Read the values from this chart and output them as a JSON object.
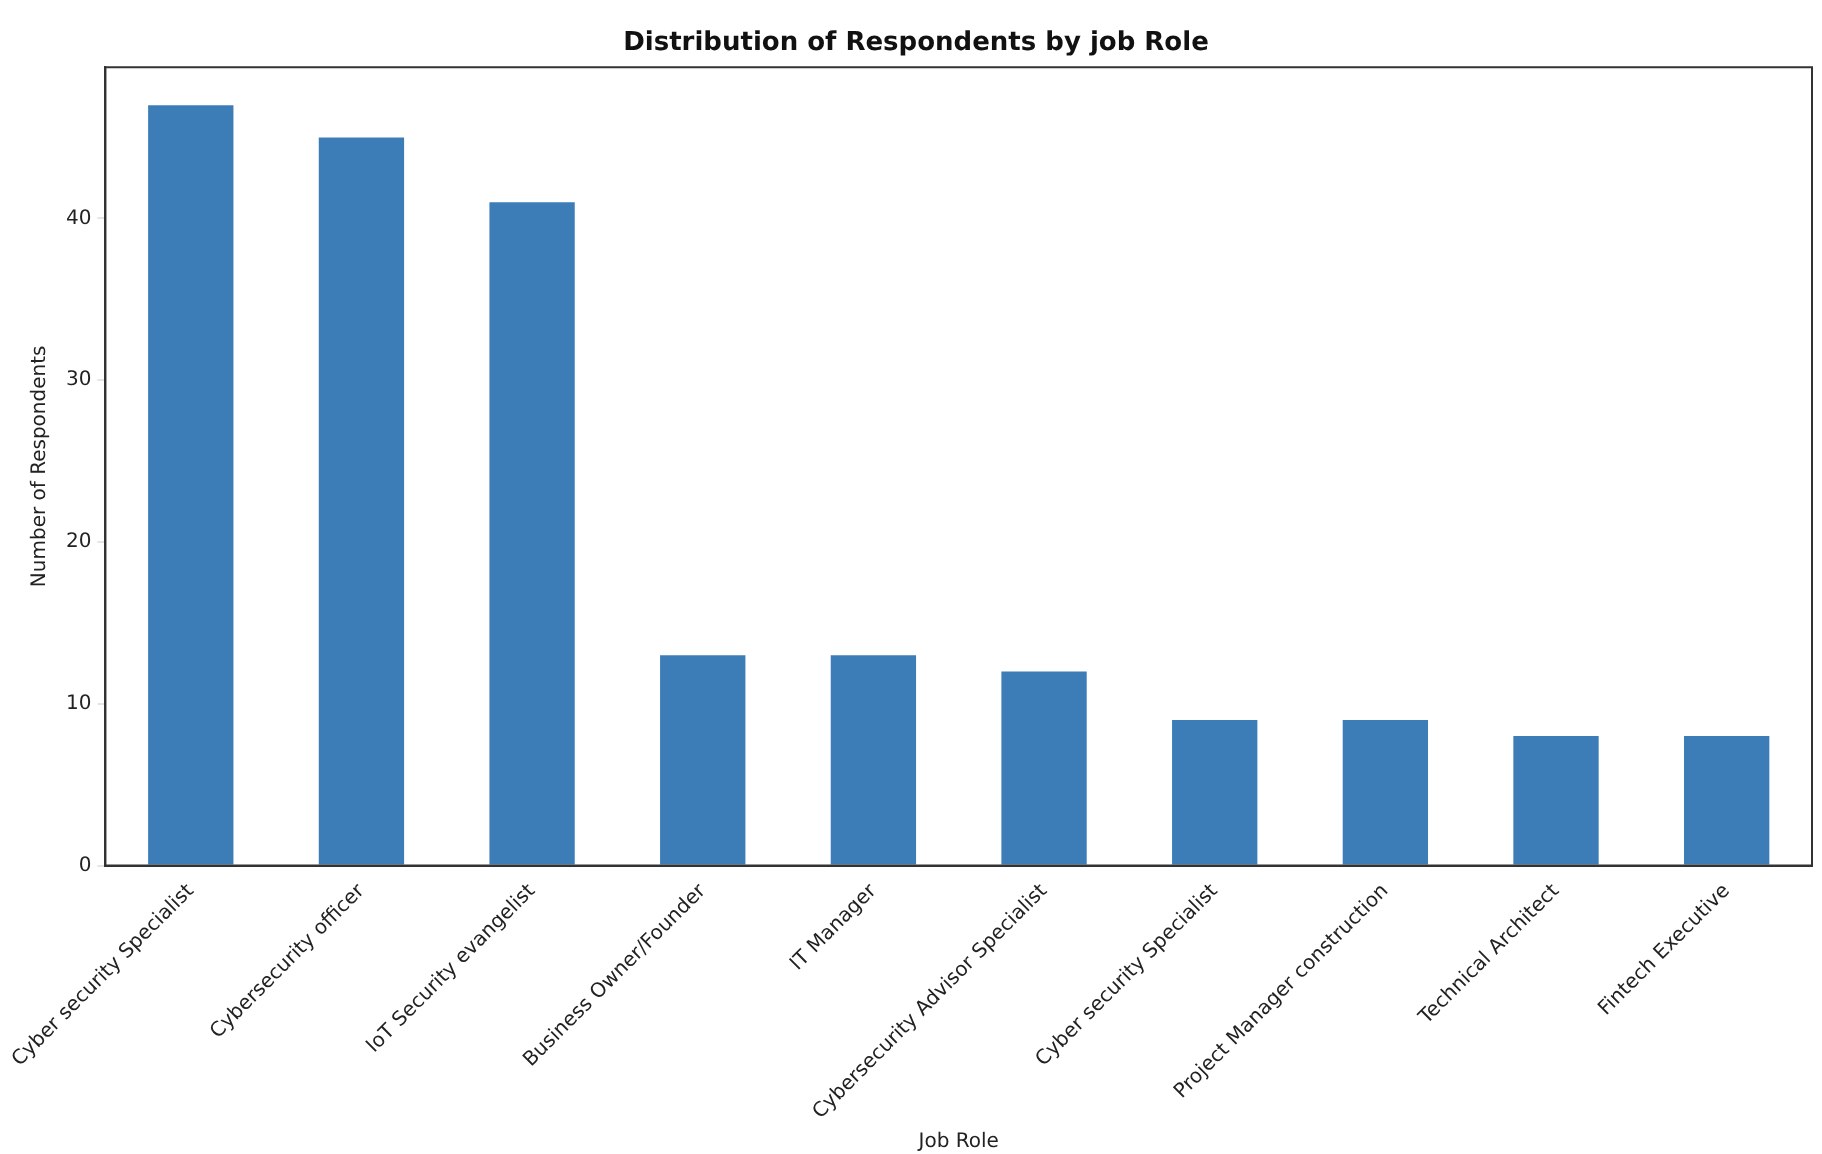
{
  "chart_data": {
    "type": "bar",
    "title": "Distribution of Respondents by job Role",
    "xlabel": "Job Role",
    "ylabel": "Number of Respondents",
    "categories": [
      "Cyber security Specialist",
      "Cybersecurity officer",
      "IoT Security evangelist",
      "Business Owner/Founder",
      "IT Manager",
      "Cybersecurity Advisor Specialist",
      "Cyber security Specialist",
      "Project Manager construction",
      "Technical Architect",
      "Fintech Executive"
    ],
    "values": [
      47,
      45,
      41,
      13,
      13,
      12,
      9,
      9,
      8,
      8
    ],
    "color": "#3c7db8",
    "ylim": [
      0,
      49.35
    ],
    "yticks": [
      0,
      10,
      20,
      30,
      40
    ],
    "grid": false,
    "legend": false
  }
}
